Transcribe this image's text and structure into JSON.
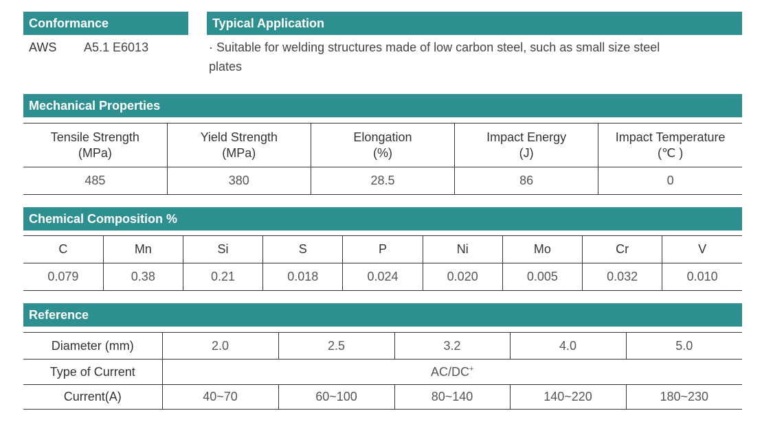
{
  "conformance": {
    "title": "Conformance",
    "standard": "AWS",
    "classification": "A5.1 E6013"
  },
  "application": {
    "title": "Typical Application",
    "line1": "· Suitable for welding structures made of low carbon steel, such as small size steel",
    "line2": "plates"
  },
  "mechanical": {
    "title": "Mechanical Properties",
    "headers": [
      {
        "name": "Tensile Strength",
        "unit": "(MPa)"
      },
      {
        "name": "Yield Strength",
        "unit": "(MPa)"
      },
      {
        "name": "Elongation",
        "unit": "(%)"
      },
      {
        "name": "Impact Energy",
        "unit": "(J)"
      },
      {
        "name": "Impact Temperature",
        "unit": "(℃ )"
      }
    ],
    "values": [
      "485",
      "380",
      "28.5",
      "86",
      "0"
    ]
  },
  "chemical": {
    "title": "Chemical Composition %",
    "elements": [
      "C",
      "Mn",
      "Si",
      "S",
      "P",
      "Ni",
      "Mo",
      "Cr",
      "V"
    ],
    "values": [
      "0.079",
      "0.38",
      "0.21",
      "0.018",
      "0.024",
      "0.020",
      "0.005",
      "0.032",
      "0.010"
    ]
  },
  "reference": {
    "title": "Reference",
    "diameter_label": "Diameter (mm)",
    "diameters": [
      "2.0",
      "2.5",
      "3.2",
      "4.0",
      "5.0"
    ],
    "current_type_label": "Type of Current",
    "current_type_value": "AC/DC",
    "current_type_sup": "+",
    "current_label": "Current(A)",
    "currents": [
      "40~70",
      "60~100",
      "80~140",
      "140~220",
      "180~230"
    ]
  },
  "colors": {
    "header_bar": "#2e8f91",
    "header_text": "#ffffff",
    "rule": "#333333"
  }
}
